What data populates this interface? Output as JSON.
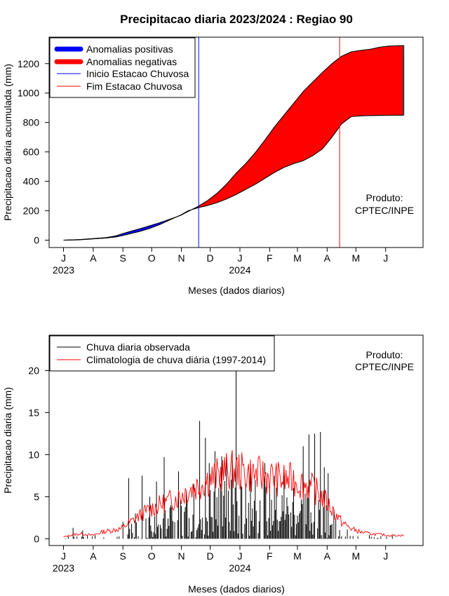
{
  "title": "Precipitacao diaria 2023/2024 : Regiao 90",
  "product_note": [
    "Produto:",
    "CPTEC/INPE"
  ],
  "colors": {
    "positive": "#0000ff",
    "negative": "#ff0000",
    "observed": "#000000",
    "climatology": "#ff0000",
    "start_line": "#0000ff",
    "end_line": "#ff0000"
  },
  "chart_data": [
    {
      "type": "area",
      "ylabel": "Precipitacao diaria acumulada (mm)",
      "xlabel": "Meses (dados diarios)",
      "month_ticks": [
        "J",
        "A",
        "S",
        "O",
        "N",
        "D",
        "J",
        "F",
        "M",
        "A",
        "M",
        "J"
      ],
      "year_labels": [
        {
          "label": "2023",
          "day": 0
        },
        {
          "label": "2024",
          "day": 184
        }
      ],
      "x_unit": "days since 2023-07-01",
      "xlim": [
        -15,
        375
      ],
      "ylim": [
        -50,
        1380
      ],
      "yticks": [
        0,
        200,
        400,
        600,
        800,
        1000,
        1200
      ],
      "legend": {
        "position": "top-left",
        "entries": [
          "Anomalias positivas",
          "Anomalias negativas",
          "Inicio Estacao Chuvosa",
          "Fim Estacao Chuvosa"
        ]
      },
      "season_start_day": 141,
      "season_end_day": 288,
      "observed_accum": [
        [
          0,
          0
        ],
        [
          15,
          4
        ],
        [
          30,
          10
        ],
        [
          45,
          18
        ],
        [
          55,
          30
        ],
        [
          62,
          45
        ],
        [
          70,
          60
        ],
        [
          80,
          78
        ],
        [
          90,
          98
        ],
        [
          100,
          118
        ],
        [
          110,
          140
        ],
        [
          122,
          168
        ],
        [
          130,
          195
        ],
        [
          140,
          228
        ],
        [
          150,
          268
        ],
        [
          160,
          318
        ],
        [
          170,
          380
        ],
        [
          180,
          455
        ],
        [
          190,
          520
        ],
        [
          200,
          595
        ],
        [
          210,
          680
        ],
        [
          220,
          770
        ],
        [
          230,
          850
        ],
        [
          240,
          930
        ],
        [
          250,
          1010
        ],
        [
          260,
          1075
        ],
        [
          270,
          1140
        ],
        [
          280,
          1200
        ],
        [
          290,
          1250
        ],
        [
          300,
          1280
        ],
        [
          310,
          1290
        ],
        [
          320,
          1298
        ],
        [
          330,
          1312
        ],
        [
          340,
          1320
        ],
        [
          355,
          1323
        ]
      ],
      "climatology_accum": [
        [
          0,
          0
        ],
        [
          15,
          2
        ],
        [
          30,
          8
        ],
        [
          45,
          15
        ],
        [
          55,
          22
        ],
        [
          62,
          32
        ],
        [
          70,
          45
        ],
        [
          80,
          60
        ],
        [
          90,
          80
        ],
        [
          100,
          105
        ],
        [
          110,
          135
        ],
        [
          122,
          170
        ],
        [
          130,
          200
        ],
        [
          140,
          220
        ],
        [
          150,
          235
        ],
        [
          160,
          255
        ],
        [
          170,
          280
        ],
        [
          180,
          310
        ],
        [
          190,
          345
        ],
        [
          200,
          380
        ],
        [
          210,
          420
        ],
        [
          220,
          460
        ],
        [
          230,
          495
        ],
        [
          240,
          520
        ],
        [
          250,
          540
        ],
        [
          260,
          575
        ],
        [
          270,
          620
        ],
        [
          280,
          700
        ],
        [
          290,
          790
        ],
        [
          300,
          840
        ],
        [
          310,
          845
        ],
        [
          320,
          847
        ],
        [
          330,
          848
        ],
        [
          340,
          849
        ],
        [
          355,
          850
        ]
      ]
    },
    {
      "type": "line",
      "ylabel": "Precipitacao diaria (mm)",
      "xlabel": "Meses (dados diarios)",
      "month_ticks": [
        "J",
        "A",
        "S",
        "O",
        "N",
        "D",
        "J",
        "F",
        "M",
        "A",
        "M",
        "J"
      ],
      "year_labels": [
        {
          "label": "2023",
          "day": 0
        },
        {
          "label": "2024",
          "day": 184
        }
      ],
      "x_unit": "days since 2023-07-01",
      "xlim": [
        -15,
        375
      ],
      "ylim": [
        -0.8,
        24.2
      ],
      "yticks": [
        0,
        5,
        10,
        15,
        20
      ],
      "legend": {
        "position": "top-left",
        "entries": [
          "Chuva diaria observada",
          "Climatologia de chuva diária (1997-2014)"
        ]
      },
      "observed_daily_peaks": [
        [
          10,
          1.3
        ],
        [
          20,
          1.0
        ],
        [
          62,
          2.0
        ],
        [
          68,
          7.2
        ],
        [
          75,
          3.0
        ],
        [
          82,
          7.5
        ],
        [
          90,
          5.0
        ],
        [
          97,
          6.8
        ],
        [
          105,
          9.7
        ],
        [
          112,
          4.0
        ],
        [
          120,
          8.0
        ],
        [
          128,
          5.5
        ],
        [
          136,
          6.5
        ],
        [
          142,
          14.0
        ],
        [
          148,
          12.0
        ],
        [
          152,
          9.0
        ],
        [
          158,
          10.4
        ],
        [
          165,
          9.8
        ],
        [
          170,
          10.0
        ],
        [
          176,
          10.5
        ],
        [
          180,
          20.0
        ],
        [
          185,
          7.0
        ],
        [
          190,
          6.5
        ],
        [
          195,
          8.0
        ],
        [
          200,
          7.0
        ],
        [
          210,
          9.0
        ],
        [
          220,
          7.5
        ],
        [
          230,
          8.5
        ],
        [
          240,
          6.0
        ],
        [
          250,
          11.0
        ],
        [
          256,
          12.4
        ],
        [
          262,
          12.5
        ],
        [
          268,
          12.7
        ],
        [
          272,
          8.5
        ],
        [
          276,
          7.8
        ],
        [
          282,
          3.5
        ],
        [
          290,
          0.3
        ]
      ],
      "climatology_daily": [
        [
          0,
          0.2
        ],
        [
          10,
          0.5
        ],
        [
          20,
          0.6
        ],
        [
          30,
          0.4
        ],
        [
          40,
          0.8
        ],
        [
          50,
          1.0
        ],
        [
          60,
          1.2
        ],
        [
          70,
          2.0
        ],
        [
          80,
          2.8
        ],
        [
          90,
          3.5
        ],
        [
          100,
          4.0
        ],
        [
          110,
          4.5
        ],
        [
          120,
          5.0
        ],
        [
          130,
          5.8
        ],
        [
          140,
          6.3
        ],
        [
          150,
          7.0
        ],
        [
          160,
          7.5
        ],
        [
          170,
          8.0
        ],
        [
          180,
          8.2
        ],
        [
          190,
          7.8
        ],
        [
          200,
          7.6
        ],
        [
          210,
          7.5
        ],
        [
          220,
          7.2
        ],
        [
          230,
          7.0
        ],
        [
          240,
          7.0
        ],
        [
          250,
          6.5
        ],
        [
          260,
          6.0
        ],
        [
          270,
          5.0
        ],
        [
          280,
          3.5
        ],
        [
          290,
          2.0
        ],
        [
          300,
          1.2
        ],
        [
          310,
          0.8
        ],
        [
          320,
          0.6
        ],
        [
          330,
          0.5
        ],
        [
          340,
          0.4
        ],
        [
          355,
          0.4
        ]
      ]
    }
  ]
}
